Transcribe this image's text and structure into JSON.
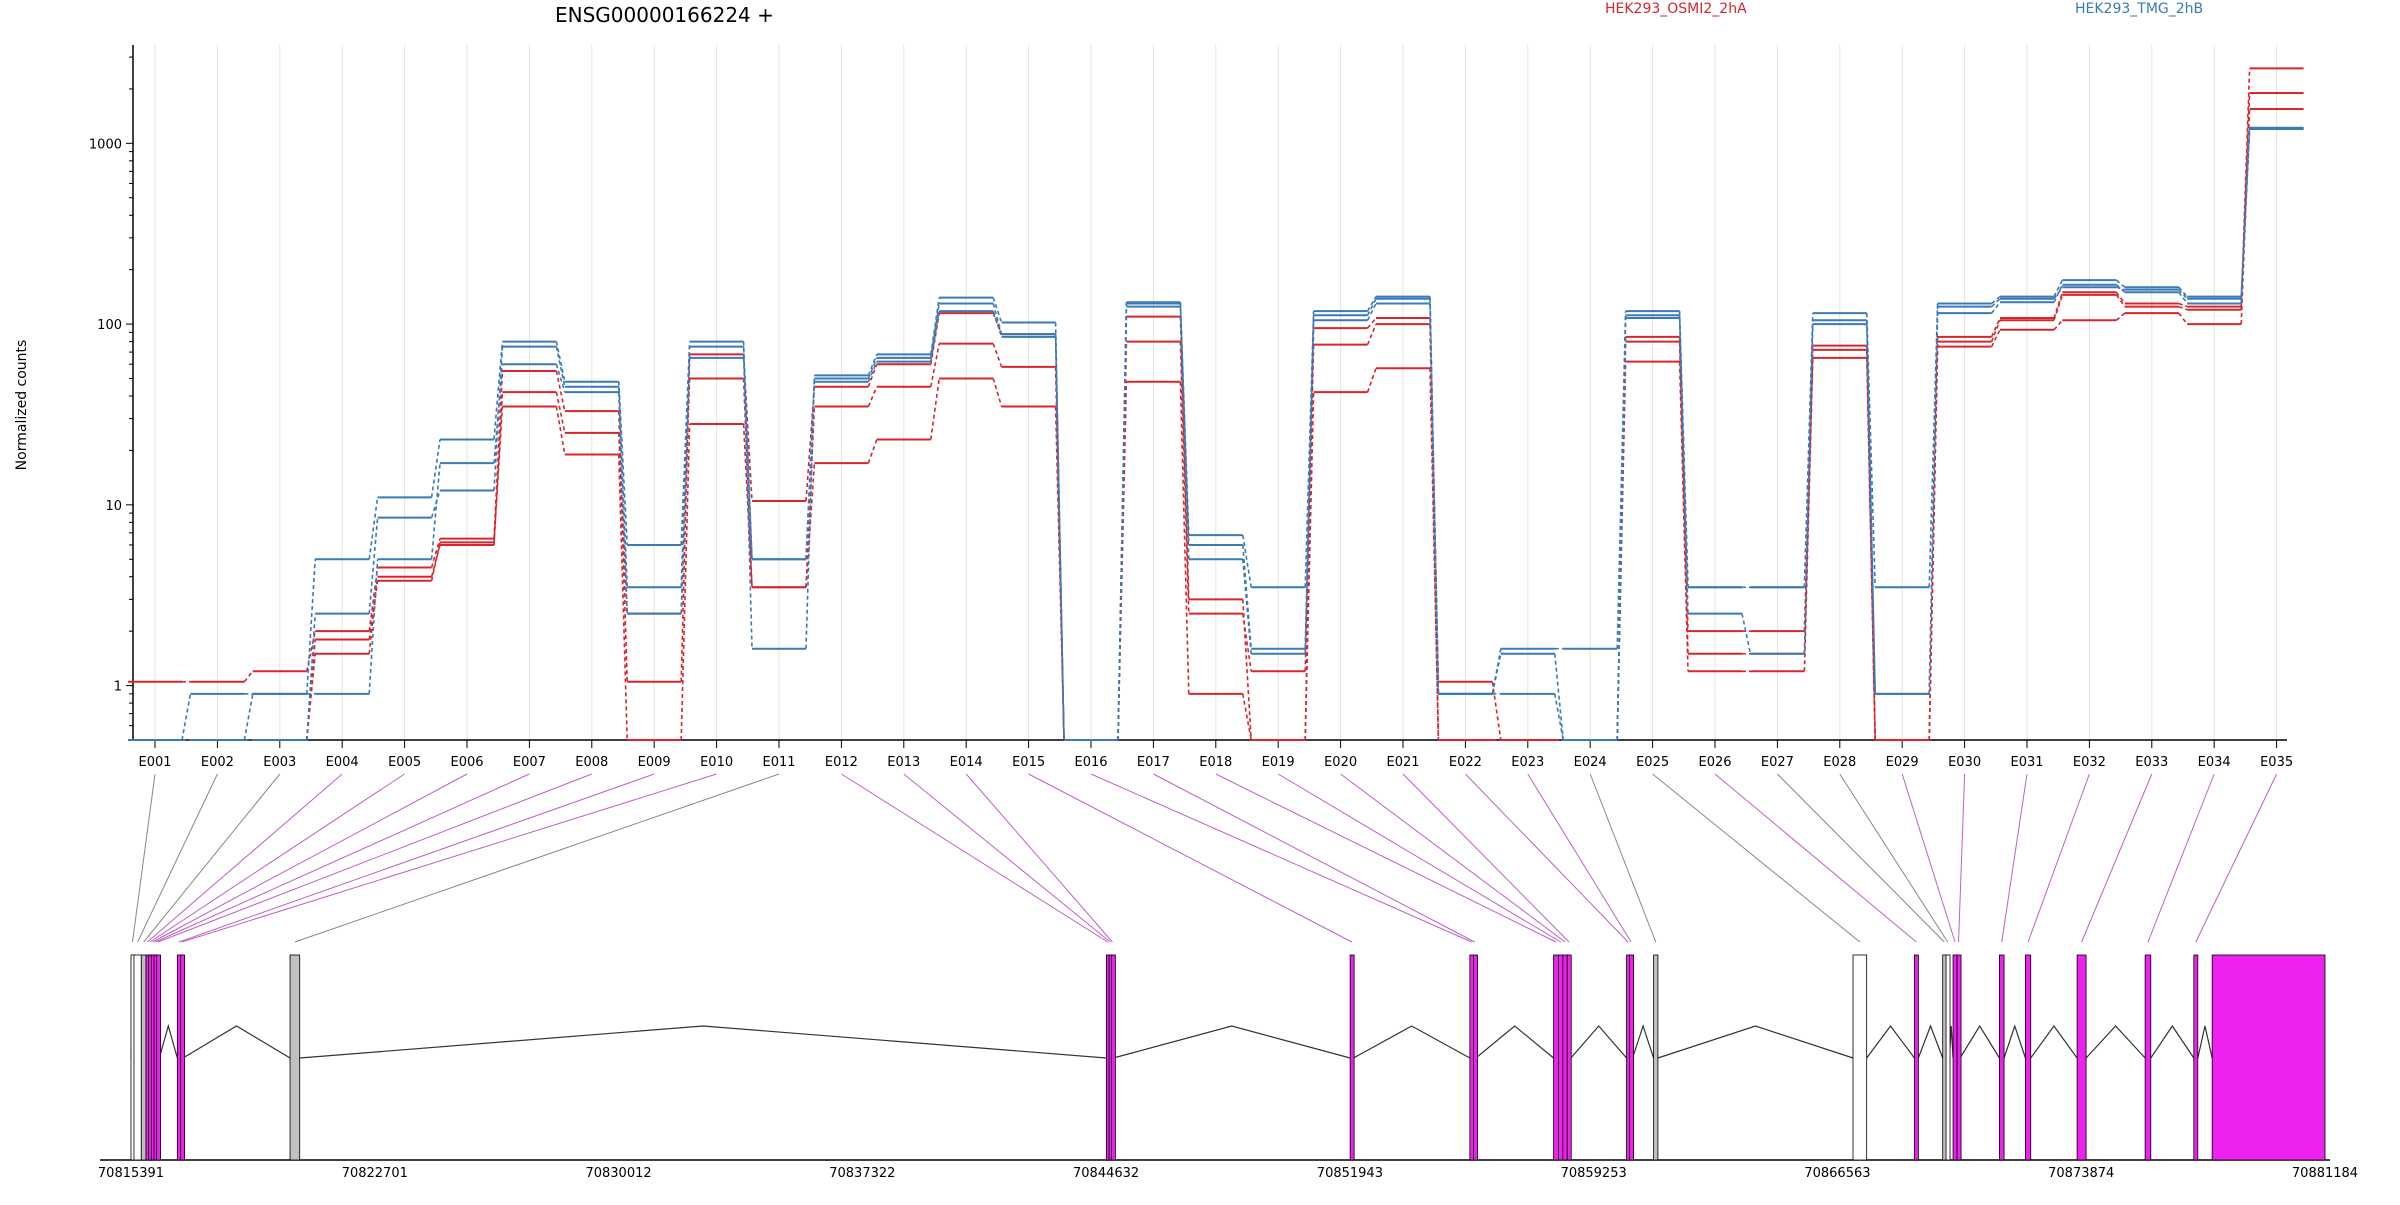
{
  "chart_data": {
    "type": "line",
    "title": "ENSG00000166224 +",
    "ylabel": "Normalized counts",
    "xlabel": "",
    "scale": "log",
    "y_ticks": [
      "1",
      "10",
      "100",
      "1000"
    ],
    "ylim": [
      0.5,
      3500
    ],
    "grid": true,
    "legend": "top",
    "categories": [
      "E001",
      "E002",
      "E003",
      "E004",
      "E005",
      "E006",
      "E007",
      "E008",
      "E009",
      "E010",
      "E011",
      "E012",
      "E013",
      "E014",
      "E015",
      "E016",
      "E017",
      "E018",
      "E019",
      "E020",
      "E021",
      "E022",
      "E023",
      "E024",
      "E025",
      "E026",
      "E027",
      "E028",
      "E029",
      "E030",
      "E031",
      "E032",
      "E033",
      "E034",
      "E035"
    ],
    "groups": [
      {
        "name": "HEK293_OSMI2_2hA",
        "color": "#d7262c"
      },
      {
        "name": "HEK293_TMG_2hB",
        "color": "#3a7ab9"
      }
    ],
    "series": [
      {
        "group": 0,
        "values": [
          1.05,
          1.05,
          1.2,
          2.0,
          4.5,
          6.5,
          55,
          33,
          1.05,
          68,
          10.5,
          45,
          60,
          115,
          88,
          0.5,
          110,
          3.0,
          0.5,
          95,
          108,
          1.05,
          0.5,
          0.5,
          85,
          2.0,
          2.0,
          76,
          0.5,
          85,
          108,
          150,
          130,
          125,
          2600
        ]
      },
      {
        "group": 0,
        "values": [
          0.5,
          0.5,
          0.5,
          1.5,
          4.0,
          6.0,
          42,
          25,
          2.5,
          50,
          3.5,
          35,
          45,
          78,
          58,
          0.5,
          80,
          2.5,
          1.2,
          77,
          100,
          0.5,
          0.5,
          0.5,
          80,
          1.5,
          1.5,
          72,
          0.5,
          80,
          105,
          145,
          125,
          120,
          1900
        ]
      },
      {
        "group": 0,
        "values": [
          0.5,
          0.5,
          0.5,
          1.8,
          3.8,
          6.2,
          35,
          19,
          0.5,
          28,
          3.5,
          17,
          23,
          50,
          35,
          0.5,
          48,
          0.9,
          0.5,
          42,
          57,
          0.5,
          0.5,
          0.5,
          62,
          1.2,
          1.2,
          65,
          0.5,
          75,
          93,
          105,
          115,
          100,
          1550
        ]
      },
      {
        "group": 1,
        "values": [
          0.5,
          0.5,
          0.9,
          0.9,
          5.0,
          17,
          60,
          42,
          2.5,
          65,
          5.0,
          48,
          62,
          118,
          85,
          0.5,
          125,
          6.0,
          1.6,
          105,
          130,
          0.9,
          0.9,
          0.5,
          108,
          3.5,
          3.5,
          105,
          0.9,
          115,
          132,
          165,
          150,
          130,
          1200
        ]
      },
      {
        "group": 1,
        "values": [
          0.5,
          0.9,
          0.9,
          5.0,
          11,
          23,
          80,
          48,
          6.0,
          80,
          1.6,
          52,
          68,
          140,
          102,
          0.5,
          132,
          6.8,
          3.5,
          118,
          142,
          0.9,
          1.6,
          1.6,
          118,
          3.5,
          3.5,
          115,
          3.5,
          130,
          142,
          175,
          160,
          142,
          1210
        ]
      },
      {
        "group": 1,
        "values": [
          0.5,
          0.5,
          0.5,
          2.5,
          8.5,
          12,
          75,
          45,
          3.5,
          75,
          5.0,
          50,
          65,
          130,
          88,
          0.5,
          130,
          5.0,
          1.5,
          112,
          138,
          0.9,
          1.5,
          0.5,
          112,
          2.5,
          1.5,
          100,
          0.9,
          125,
          138,
          160,
          155,
          138,
          1220
        ]
      }
    ]
  },
  "gene_model": {
    "coordinate_labels": [
      "70815391",
      "70822701",
      "70830012",
      "70837322",
      "70844632",
      "70851943",
      "70859253",
      "70866563",
      "70873874",
      "70881184"
    ],
    "coordinate_range": [
      70815391,
      70881184
    ],
    "exon_colors": {
      "differential": "#ee22ee",
      "constitutive": "#c0c0c0",
      "untested": "#ffffff"
    },
    "exons": [
      {
        "id": "E001",
        "start": 70815391,
        "end": 70815480,
        "kind": "untested"
      },
      {
        "id": "E002",
        "start": 70815480,
        "end": 70815700,
        "kind": "untested"
      },
      {
        "id": "E003",
        "start": 70815700,
        "end": 70815840,
        "kind": "constitutive"
      },
      {
        "id": "E004",
        "start": 70815840,
        "end": 70815920,
        "kind": "differential"
      },
      {
        "id": "E005",
        "start": 70815920,
        "end": 70816000,
        "kind": "differential"
      },
      {
        "id": "E006",
        "start": 70816000,
        "end": 70816080,
        "kind": "differential"
      },
      {
        "id": "E007",
        "start": 70816080,
        "end": 70816160,
        "kind": "differential"
      },
      {
        "id": "E008",
        "start": 70816160,
        "end": 70816240,
        "kind": "differential"
      },
      {
        "id": "E009",
        "start": 70816780,
        "end": 70816880,
        "kind": "differential"
      },
      {
        "id": "E010",
        "start": 70816880,
        "end": 70816950,
        "kind": "differential"
      },
      {
        "id": "E011",
        "start": 70820160,
        "end": 70820450,
        "kind": "constitutive"
      },
      {
        "id": "E012",
        "start": 70844640,
        "end": 70844720,
        "kind": "differential"
      },
      {
        "id": "E013",
        "start": 70844720,
        "end": 70844790,
        "kind": "differential"
      },
      {
        "id": "E014",
        "start": 70844790,
        "end": 70844850,
        "kind": "differential"
      },
      {
        "id": "E015",
        "start": 70851950,
        "end": 70852050,
        "kind": "differential"
      },
      {
        "id": "E016",
        "start": 70855540,
        "end": 70855650,
        "kind": "differential"
      },
      {
        "id": "E017",
        "start": 70855650,
        "end": 70855720,
        "kind": "differential"
      },
      {
        "id": "E018",
        "start": 70858050,
        "end": 70858200,
        "kind": "differential"
      },
      {
        "id": "E019",
        "start": 70858200,
        "end": 70858330,
        "kind": "differential"
      },
      {
        "id": "E020",
        "start": 70858330,
        "end": 70858460,
        "kind": "differential"
      },
      {
        "id": "E021",
        "start": 70858460,
        "end": 70858570,
        "kind": "differential"
      },
      {
        "id": "E022",
        "start": 70860240,
        "end": 70860330,
        "kind": "differential"
      },
      {
        "id": "E023",
        "start": 70860330,
        "end": 70860420,
        "kind": "differential"
      },
      {
        "id": "E024",
        "start": 70861050,
        "end": 70861180,
        "kind": "constitutive"
      },
      {
        "id": "E025",
        "start": 70867030,
        "end": 70867440,
        "kind": "untested"
      },
      {
        "id": "E026",
        "start": 70868870,
        "end": 70868990,
        "kind": "differential"
      },
      {
        "id": "E027",
        "start": 70869720,
        "end": 70869820,
        "kind": "constitutive"
      },
      {
        "id": "E028",
        "start": 70869820,
        "end": 70869920,
        "kind": "untested"
      },
      {
        "id": "E029",
        "start": 70870030,
        "end": 70870150,
        "kind": "differential"
      },
      {
        "id": "E030",
        "start": 70870150,
        "end": 70870240,
        "kind": "differential"
      },
      {
        "id": "E031",
        "start": 70871420,
        "end": 70871560,
        "kind": "differential"
      },
      {
        "id": "E032",
        "start": 70872200,
        "end": 70872360,
        "kind": "differential"
      },
      {
        "id": "E033",
        "start": 70873750,
        "end": 70874020,
        "kind": "differential"
      },
      {
        "id": "E034",
        "start": 70875790,
        "end": 70875960,
        "kind": "differential"
      },
      {
        "id": "E035",
        "start": 70877250,
        "end": 70877370,
        "kind": "differential"
      },
      {
        "id": "E035b",
        "start": 70877800,
        "end": 70881184,
        "kind": "differential"
      }
    ],
    "introns": [
      [
        70815391,
        70815480
      ],
      [
        70816240,
        70816780
      ],
      [
        70816950,
        70820160
      ],
      [
        70820450,
        70844640
      ],
      [
        70844850,
        70851950
      ],
      [
        70852050,
        70855540
      ],
      [
        70855720,
        70858050
      ],
      [
        70858570,
        70860240
      ],
      [
        70860420,
        70861050
      ],
      [
        70861180,
        70867030
      ],
      [
        70867440,
        70868870
      ],
      [
        70868990,
        70869720
      ],
      [
        70869920,
        70870030
      ],
      [
        70870240,
        70871420
      ],
      [
        70871560,
        70872200
      ],
      [
        70872360,
        70873750
      ],
      [
        70874020,
        70875790
      ],
      [
        70875960,
        70877250
      ],
      [
        70877370,
        70877800
      ]
    ]
  }
}
